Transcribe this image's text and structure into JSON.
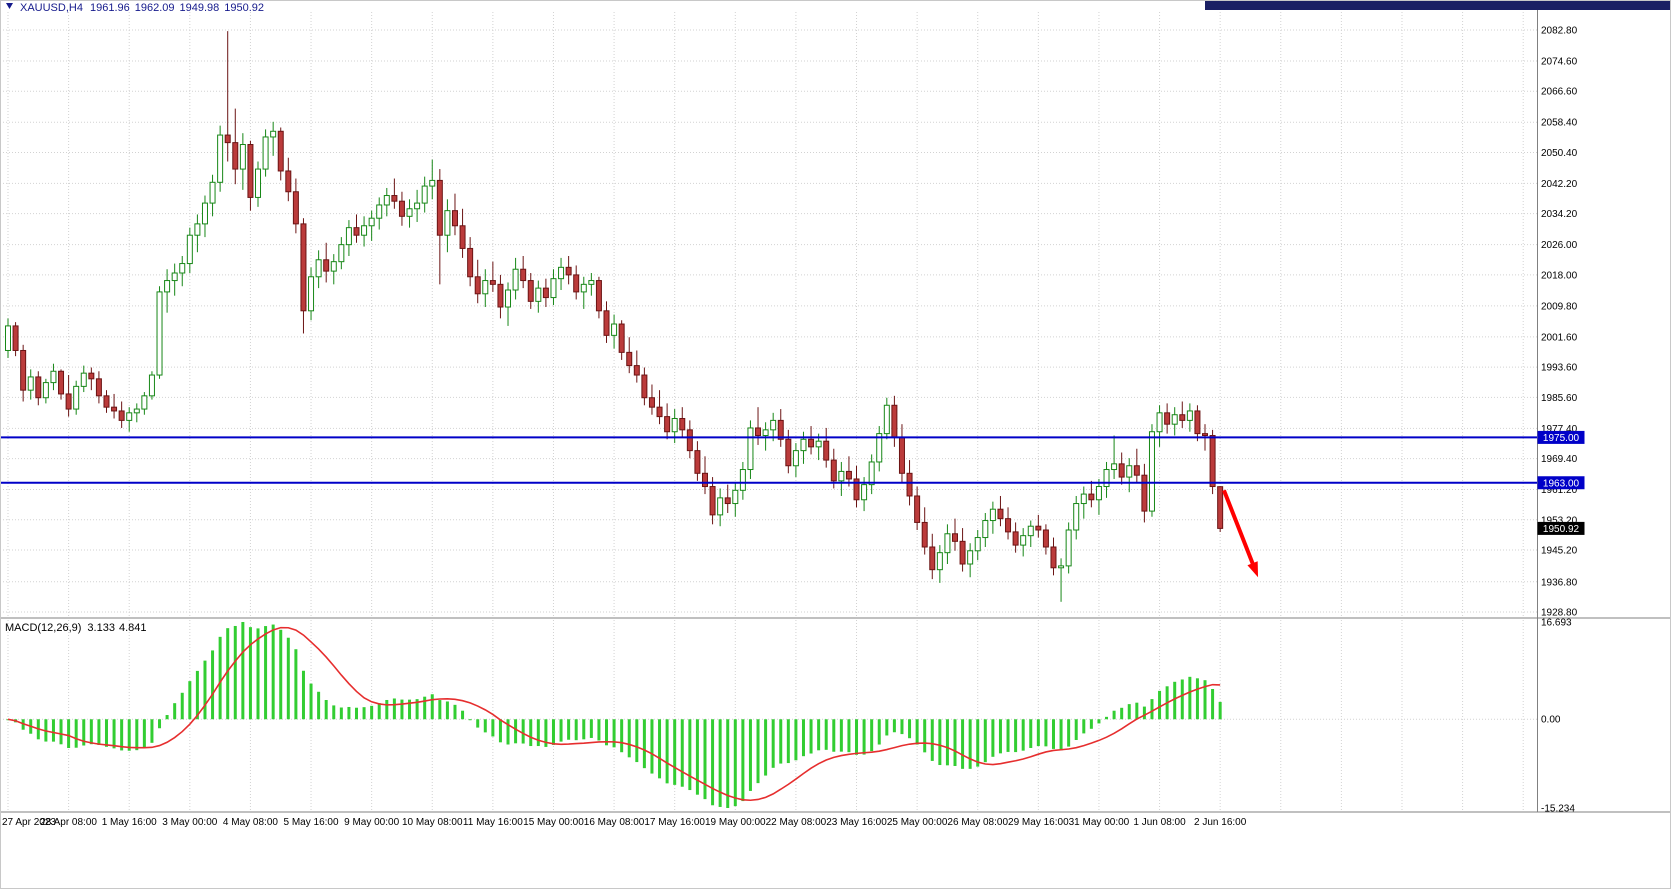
{
  "header": {
    "symbol": "XAUUSD,H4",
    "open": "1961.96",
    "high": "1962.09",
    "low": "1949.98",
    "close": "1950.92"
  },
  "indicator": {
    "label": "MACD(12,26,9)",
    "macd_value": "3.133",
    "signal_value": "4.841"
  },
  "colors": {
    "bull_fill": "#FFFFFF",
    "bull_stroke": "#178717",
    "bear_fill": "#BB3B3B",
    "bear_stroke": "#6B1414",
    "grid": "#D2D2D2",
    "separator": "#808080",
    "title_text": "#151A8C",
    "top_strip": "#1B2064",
    "axis_text": "#000000",
    "hline": "#0000C8",
    "arrow": "#FF0000"
  },
  "chart_data": [
    {
      "type": "candlestick",
      "title": "XAUUSD,H4",
      "symbol": "XAUUSD",
      "timeframe": "H4",
      "grid": true,
      "ylim": [
        1928.8,
        2082.8
      ],
      "y_axis_ticks": [
        2082.8,
        2074.6,
        2066.6,
        2058.4,
        2050.4,
        2042.2,
        2034.2,
        2026.0,
        2018.0,
        2009.8,
        2001.6,
        1993.6,
        1985.6,
        1977.4,
        1969.4,
        1961.2,
        1953.2,
        1945.2,
        1936.8,
        1928.8
      ],
      "x_axis_labels": [
        {
          "bar": 0,
          "label": "27 Apr 2023"
        },
        {
          "bar": 8,
          "label": "28 Apr 08:00"
        },
        {
          "bar": 16,
          "label": "1 May 16:00"
        },
        {
          "bar": 24,
          "label": "3 May 00:00"
        },
        {
          "bar": 32,
          "label": "4 May 08:00"
        },
        {
          "bar": 40,
          "label": "5 May 16:00"
        },
        {
          "bar": 48,
          "label": "9 May 00:00"
        },
        {
          "bar": 56,
          "label": "10 May 08:00"
        },
        {
          "bar": 64,
          "label": "11 May 16:00"
        },
        {
          "bar": 72,
          "label": "15 May 00:00"
        },
        {
          "bar": 80,
          "label": "16 May 08:00"
        },
        {
          "bar": 88,
          "label": "17 May 16:00"
        },
        {
          "bar": 96,
          "label": "19 May 00:00"
        },
        {
          "bar": 104,
          "label": "22 May 08:00"
        },
        {
          "bar": 112,
          "label": "23 May 16:00"
        },
        {
          "bar": 120,
          "label": "25 May 00:00"
        },
        {
          "bar": 128,
          "label": "26 May 08:00"
        },
        {
          "bar": 136,
          "label": "29 May 16:00"
        },
        {
          "bar": 144,
          "label": "31 May 00:00"
        },
        {
          "bar": 152,
          "label": "1 Jun 08:00"
        },
        {
          "bar": 160,
          "label": "2 Jun 16:00"
        }
      ],
      "horizontal_lines": [
        {
          "price": 1975.0,
          "label": "1975.00",
          "color": "#0000C8"
        },
        {
          "price": 1963.0,
          "label": "1963.00",
          "color": "#0000C8"
        }
      ],
      "last_price_tag": {
        "price": 1950.92,
        "label": "1950.92",
        "bg": "#000000",
        "fg": "#FFFFFF"
      },
      "annotations": [
        {
          "type": "arrow",
          "color": "#FF0000",
          "from_bar": 160.5,
          "from_price": 1961,
          "to_bar": 165,
          "to_price": 1938
        }
      ],
      "candles": [
        [
          1998,
          2006.5,
          1996,
          2004.5
        ],
        [
          2004.5,
          2005.5,
          1996.5,
          1998
        ],
        [
          1998,
          1999.5,
          1984.5,
          1987.5
        ],
        [
          1987.5,
          1993,
          1985,
          1991
        ],
        [
          1991,
          1992.5,
          1983.5,
          1985.5
        ],
        [
          1985.5,
          1990.5,
          1984,
          1989.5
        ],
        [
          1989.5,
          1994.5,
          1987.5,
          1992.5
        ],
        [
          1992.5,
          1993,
          1985,
          1986.5
        ],
        [
          1986.5,
          1991.5,
          1980.5,
          1982.5
        ],
        [
          1982.5,
          1990,
          1981,
          1988.5
        ],
        [
          1988.5,
          1994,
          1987,
          1992
        ],
        [
          1992,
          1993.5,
          1987.5,
          1990.5
        ],
        [
          1990.5,
          1992.5,
          1984,
          1986
        ],
        [
          1986,
          1987.5,
          1981.5,
          1983
        ],
        [
          1983,
          1986.5,
          1980,
          1982
        ],
        [
          1982,
          1984.5,
          1977.5,
          1979.5
        ],
        [
          1979.5,
          1983,
          1976.5,
          1981.5
        ],
        [
          1981.5,
          1984,
          1979,
          1982.5
        ],
        [
          1982.5,
          1987,
          1981,
          1986
        ],
        [
          1986,
          1992.5,
          1985,
          1991.5
        ],
        [
          1991.5,
          2015,
          1990.5,
          2013.5
        ],
        [
          2013.5,
          2019.5,
          2008,
          2016.5
        ],
        [
          2016.5,
          2021,
          2012.5,
          2018.5
        ],
        [
          2018.5,
          2023,
          2015,
          2021
        ],
        [
          2021,
          2030.5,
          2018.5,
          2028.5
        ],
        [
          2028.5,
          2034,
          2024,
          2031.5
        ],
        [
          2031.5,
          2039,
          2028,
          2037
        ],
        [
          2037,
          2044.5,
          2033.5,
          2042.5
        ],
        [
          2042.5,
          2057.5,
          2040,
          2055
        ],
        [
          2055,
          2082.5,
          2048,
          2053
        ],
        [
          2053,
          2062,
          2042,
          2046
        ],
        [
          2046,
          2055.5,
          2040.5,
          2052.5
        ],
        [
          2052.5,
          2053.5,
          2035,
          2038.5
        ],
        [
          2038.5,
          2048,
          2036,
          2046
        ],
        [
          2046,
          2056.5,
          2044,
          2054.5
        ],
        [
          2054.5,
          2058.5,
          2049.5,
          2056
        ],
        [
          2056,
          2057,
          2043,
          2045.5
        ],
        [
          2045.5,
          2049,
          2037.5,
          2040
        ],
        [
          2040,
          2043.5,
          2029,
          2031.5
        ],
        [
          2031.5,
          2033,
          2002.5,
          2008.5
        ],
        [
          2008.5,
          2020,
          2006,
          2017.5
        ],
        [
          2017.5,
          2024.5,
          2014.5,
          2022
        ],
        [
          2022,
          2026.5,
          2016,
          2019
        ],
        [
          2019,
          2023.5,
          2015.5,
          2021.5
        ],
        [
          2021.5,
          2028,
          2019.5,
          2026
        ],
        [
          2026,
          2032.5,
          2023,
          2030.5
        ],
        [
          2030.5,
          2034,
          2026.5,
          2028.5
        ],
        [
          2028.5,
          2033.5,
          2025.5,
          2031
        ],
        [
          2031,
          2035,
          2027,
          2033
        ],
        [
          2033,
          2038.5,
          2030,
          2036.5
        ],
        [
          2036.5,
          2041,
          2033.5,
          2039
        ],
        [
          2039,
          2043.5,
          2035.5,
          2037.5
        ],
        [
          2037.5,
          2040,
          2031,
          2033.5
        ],
        [
          2033.5,
          2038,
          2030.5,
          2035.5
        ],
        [
          2035.5,
          2040.5,
          2032,
          2037
        ],
        [
          2037,
          2044,
          2034.5,
          2041.5
        ],
        [
          2041.5,
          2048.5,
          2038,
          2043
        ],
        [
          2043,
          2046,
          2015.5,
          2028.5
        ],
        [
          2028.5,
          2038,
          2024,
          2035
        ],
        [
          2035,
          2039.5,
          2028.5,
          2031
        ],
        [
          2031,
          2035.5,
          2022.5,
          2025
        ],
        [
          2025,
          2028,
          2015,
          2017.5
        ],
        [
          2017.5,
          2022,
          2010.5,
          2013
        ],
        [
          2013,
          2019.5,
          2009.5,
          2016.5
        ],
        [
          2016.5,
          2021.5,
          2013.5,
          2015.5
        ],
        [
          2015.5,
          2018,
          2006.5,
          2009.5
        ],
        [
          2009.5,
          2016,
          2004.5,
          2014
        ],
        [
          2014,
          2022.5,
          2011.5,
          2019.5
        ],
        [
          2019.5,
          2023,
          2014.5,
          2016.5
        ],
        [
          2016.5,
          2018.5,
          2009,
          2011
        ],
        [
          2011,
          2016.5,
          2008,
          2014.5
        ],
        [
          2014.5,
          2017,
          2009.5,
          2012
        ],
        [
          2012,
          2019.5,
          2010,
          2017
        ],
        [
          2017,
          2022.5,
          2014,
          2020
        ],
        [
          2020,
          2023,
          2015.5,
          2018
        ],
        [
          2018,
          2020.5,
          2011.5,
          2013.5
        ],
        [
          2013.5,
          2017.5,
          2009,
          2015.5
        ],
        [
          2015.5,
          2018.5,
          2012.5,
          2016.5
        ],
        [
          2016.5,
          2017.5,
          2006.5,
          2008.5
        ],
        [
          2008.5,
          2011,
          2000,
          2002
        ],
        [
          2002,
          2007.5,
          1998.5,
          2005
        ],
        [
          2005,
          2006,
          1995.5,
          1997.5
        ],
        [
          1997.5,
          2001.5,
          1992,
          1994
        ],
        [
          1994,
          1998,
          1989.5,
          1991.5
        ],
        [
          1991.5,
          1993.5,
          1983.5,
          1985.5
        ],
        [
          1985.5,
          1989,
          1981,
          1983
        ],
        [
          1983,
          1987.5,
          1978.5,
          1980.5
        ],
        [
          1980.5,
          1984,
          1974.5,
          1976.5
        ],
        [
          1976.5,
          1982.5,
          1973.5,
          1980
        ],
        [
          1980,
          1983,
          1975,
          1977
        ],
        [
          1977,
          1979.5,
          1969.5,
          1971.5
        ],
        [
          1971.5,
          1974,
          1963.5,
          1965.5
        ],
        [
          1965.5,
          1970,
          1960,
          1962
        ],
        [
          1962,
          1964.5,
          1952,
          1954.5
        ],
        [
          1954.5,
          1961.5,
          1951.5,
          1959
        ],
        [
          1959,
          1962.5,
          1955,
          1957.5
        ],
        [
          1957.5,
          1963,
          1954,
          1961
        ],
        [
          1961,
          1968.5,
          1958.5,
          1966.5
        ],
        [
          1966.5,
          1979.5,
          1964,
          1977.5
        ],
        [
          1977.5,
          1983,
          1973,
          1975.5
        ],
        [
          1975.5,
          1979,
          1971.5,
          1977
        ],
        [
          1977,
          1981.5,
          1974,
          1979.5
        ],
        [
          1979.5,
          1982.5,
          1972.5,
          1974.5
        ],
        [
          1974.5,
          1977,
          1965.5,
          1967.5
        ],
        [
          1967.5,
          1973.5,
          1964.5,
          1971.5
        ],
        [
          1971.5,
          1976.5,
          1968,
          1974.5
        ],
        [
          1974.5,
          1978,
          1970.5,
          1972.5
        ],
        [
          1972.5,
          1976,
          1969,
          1974
        ],
        [
          1974,
          1977.5,
          1967,
          1969
        ],
        [
          1969,
          1972,
          1961.5,
          1963.5
        ],
        [
          1963.5,
          1968.5,
          1959.5,
          1966
        ],
        [
          1966,
          1970,
          1962,
          1964
        ],
        [
          1964,
          1967.5,
          1956.5,
          1958.5
        ],
        [
          1958.5,
          1964.5,
          1955.5,
          1962.5
        ],
        [
          1962.5,
          1970.5,
          1960,
          1968.5
        ],
        [
          1968.5,
          1978,
          1966,
          1976
        ],
        [
          1976,
          1985.5,
          1974.5,
          1983.5
        ],
        [
          1983.5,
          1986,
          1972.5,
          1975
        ],
        [
          1975,
          1978.5,
          1963,
          1965.5
        ],
        [
          1965.5,
          1969,
          1957,
          1959.5
        ],
        [
          1959.5,
          1962,
          1950.5,
          1952.5
        ],
        [
          1952.5,
          1956.5,
          1944,
          1946
        ],
        [
          1946,
          1949.5,
          1937.5,
          1940
        ],
        [
          1940,
          1946.5,
          1936.5,
          1944.5
        ],
        [
          1944.5,
          1952,
          1941.5,
          1949.5
        ],
        [
          1949.5,
          1953.5,
          1945,
          1947.5
        ],
        [
          1947.5,
          1951,
          1939.5,
          1941.5
        ],
        [
          1941.5,
          1947,
          1938,
          1945
        ],
        [
          1945,
          1950.5,
          1942.5,
          1948.5
        ],
        [
          1948.5,
          1955,
          1946,
          1953
        ],
        [
          1953,
          1958,
          1949.5,
          1956
        ],
        [
          1956,
          1959.5,
          1951.5,
          1953.5
        ],
        [
          1953.5,
          1956.5,
          1948,
          1950
        ],
        [
          1950,
          1952.5,
          1944.5,
          1946.5
        ],
        [
          1946.5,
          1951,
          1943.5,
          1949
        ],
        [
          1949,
          1953,
          1946,
          1951.5
        ],
        [
          1951.5,
          1954.5,
          1948.5,
          1950.5
        ],
        [
          1950.5,
          1952,
          1944,
          1946
        ],
        [
          1946,
          1948.5,
          1938.5,
          1940.5
        ],
        [
          1940.5,
          1943,
          1931.5,
          1941
        ],
        [
          1941,
          1952.5,
          1939,
          1950.5
        ],
        [
          1950.5,
          1959.5,
          1948,
          1957.5
        ],
        [
          1957.5,
          1962,
          1953.5,
          1960
        ],
        [
          1960,
          1963.5,
          1956.5,
          1958.5
        ],
        [
          1958.5,
          1964,
          1954.5,
          1962
        ],
        [
          1962,
          1968.5,
          1959,
          1966.5
        ],
        [
          1966.5,
          1975.5,
          1964,
          1968
        ],
        [
          1968,
          1971,
          1962.5,
          1964.5
        ],
        [
          1964.5,
          1969.5,
          1960.5,
          1967.5
        ],
        [
          1967.5,
          1972,
          1963,
          1965
        ],
        [
          1965,
          1968,
          1952.5,
          1955.5
        ],
        [
          1955.5,
          1978.5,
          1954,
          1976.5
        ],
        [
          1976.5,
          1983.5,
          1972.5,
          1981.5
        ],
        [
          1981.5,
          1984,
          1976,
          1978.5
        ],
        [
          1978.5,
          1983,
          1975.5,
          1981
        ],
        [
          1981,
          1984.5,
          1977.5,
          1979.5
        ],
        [
          1979.5,
          1984,
          1976.5,
          1982
        ],
        [
          1982,
          1983.5,
          1974,
          1976
        ],
        [
          1976,
          1978.5,
          1971.5,
          1975.5
        ],
        [
          1975.5,
          1977,
          1960,
          1962
        ],
        [
          1961.96,
          1962.09,
          1949.98,
          1950.92
        ]
      ]
    },
    {
      "type": "macd",
      "label": "MACD(12,26,9)",
      "params": {
        "fast": 12,
        "slow": 26,
        "signal": 9
      },
      "display_values": {
        "macd": "3.133",
        "signal": "4.841"
      },
      "y_axis_ticks": [
        {
          "value": 16.693,
          "label": "16.693"
        },
        {
          "value": 0,
          "label": "0.00"
        },
        {
          "value": -15.234,
          "label": "-15.234"
        }
      ],
      "colors": {
        "histogram": "#32CD32",
        "signal_line": "#E62E2E"
      }
    }
  ]
}
